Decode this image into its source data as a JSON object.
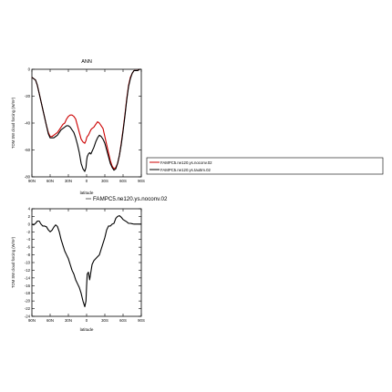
{
  "chart_data": [
    {
      "type": "line",
      "title": "ANN",
      "xlabel": "latitude",
      "ylabel": "TOM SW cloud forcing (W/m²)",
      "x_ticks": [
        "90N",
        "60N",
        "30N",
        "0",
        "30S",
        "60S",
        "90S"
      ],
      "x_tick_values": [
        90,
        60,
        30,
        0,
        -30,
        -60,
        -90
      ],
      "xlim": [
        90,
        -90
      ],
      "y_ticks": [
        "0",
        "-20",
        "-40",
        "-60",
        "-80"
      ],
      "y_tick_values": [
        0,
        -20,
        -40,
        -60,
        -80
      ],
      "ylim": [
        -80,
        0
      ],
      "legend_position": "right",
      "grid": false,
      "series": [
        {
          "name": "FAMPC5.ne120.ys.noconv.02",
          "color": "#cc0000",
          "x": [
            90,
            87,
            84,
            81,
            78,
            75,
            72,
            69,
            66,
            63,
            60,
            57,
            54,
            51,
            48,
            45,
            42,
            39,
            36,
            33,
            30,
            27,
            24,
            21,
            18,
            15,
            12,
            9,
            6,
            3,
            1,
            0,
            -1,
            -3,
            -5,
            -7,
            -9,
            -12,
            -15,
            -18,
            -21,
            -24,
            -27,
            -30,
            -33,
            -36,
            -39,
            -42,
            -45,
            -48,
            -51,
            -54,
            -57,
            -60,
            -63,
            -66,
            -69,
            -72,
            -75,
            -78,
            -81,
            -84,
            -87,
            -90
          ],
          "y": [
            -6,
            -7,
            -8,
            -12,
            -18,
            -24,
            -30,
            -36,
            -42,
            -47,
            -50,
            -50,
            -49,
            -48,
            -47,
            -45,
            -43,
            -41,
            -40,
            -37,
            -35,
            -34,
            -34,
            -35,
            -37,
            -42,
            -47,
            -52,
            -54,
            -55,
            -53,
            -51,
            -50,
            -49,
            -47,
            -45,
            -44,
            -43,
            -41,
            -39,
            -40,
            -42,
            -44,
            -50,
            -56,
            -62,
            -68,
            -72,
            -74,
            -73,
            -70,
            -64,
            -55,
            -45,
            -34,
            -22,
            -12,
            -6,
            -3,
            -1,
            -1,
            -1,
            0,
            0
          ]
        },
        {
          "name": "FAMPC5.ne120.ys.tau5m.02",
          "color": "#000000",
          "x": [
            90,
            87,
            84,
            81,
            78,
            75,
            72,
            69,
            66,
            63,
            60,
            57,
            54,
            51,
            48,
            45,
            42,
            39,
            36,
            33,
            30,
            27,
            24,
            21,
            18,
            15,
            12,
            9,
            6,
            3,
            1,
            0,
            -1,
            -3,
            -5,
            -7,
            -9,
            -12,
            -15,
            -18,
            -21,
            -24,
            -27,
            -30,
            -33,
            -36,
            -39,
            -42,
            -45,
            -48,
            -51,
            -54,
            -57,
            -60,
            -63,
            -66,
            -69,
            -72,
            -75,
            -78,
            -81,
            -84,
            -87,
            -90
          ],
          "y": [
            -6,
            -7,
            -8,
            -12,
            -18,
            -24,
            -30,
            -36,
            -42,
            -48,
            -51,
            -51,
            -51,
            -50,
            -49,
            -47,
            -45,
            -44,
            -43,
            -42,
            -42,
            -43,
            -45,
            -47,
            -51,
            -56,
            -62,
            -70,
            -74,
            -76,
            -73,
            -68,
            -65,
            -63,
            -62,
            -63,
            -61,
            -58,
            -54,
            -51,
            -49,
            -50,
            -52,
            -55,
            -60,
            -65,
            -70,
            -73,
            -75,
            -74,
            -70,
            -64,
            -56,
            -46,
            -35,
            -23,
            -13,
            -7,
            -3,
            -1,
            -1,
            -1,
            0,
            0
          ]
        }
      ]
    },
    {
      "type": "line",
      "title": "",
      "xlabel": "latitude",
      "ylabel": "TOM SW cloud forcing (W/m²)",
      "x_ticks": [
        "90N",
        "60N",
        "30N",
        "0",
        "30S",
        "60S",
        "90S"
      ],
      "x_tick_values": [
        90,
        60,
        30,
        0,
        -30,
        -60,
        -90
      ],
      "xlim": [
        90,
        -90
      ],
      "y_ticks": [
        "4",
        "2",
        "0",
        "-2",
        "-4",
        "-6",
        "-8",
        "-10",
        "-12",
        "-14",
        "-16",
        "-18",
        "-20",
        "-22",
        "-24"
      ],
      "y_tick_values": [
        4,
        2,
        0,
        -2,
        -4,
        -6,
        -8,
        -10,
        -12,
        -14,
        -16,
        -18,
        -20,
        -22,
        -24
      ],
      "ylim": [
        -24,
        4
      ],
      "legend_position": "top-right",
      "grid": false,
      "series": [
        {
          "name": "FAMPC5.ne120.ys.noconv.02",
          "color": "#000000",
          "x": [
            90,
            87,
            84,
            81,
            78,
            75,
            72,
            69,
            66,
            63,
            60,
            57,
            54,
            51,
            48,
            45,
            42,
            39,
            36,
            33,
            30,
            27,
            24,
            21,
            18,
            15,
            12,
            9,
            6,
            3,
            1,
            0,
            -1,
            -3,
            -5,
            -7,
            -9,
            -12,
            -15,
            -18,
            -21,
            -24,
            -27,
            -30,
            -33,
            -36,
            -39,
            -42,
            -45,
            -48,
            -51,
            -54,
            -57,
            -60,
            -63,
            -66,
            -69,
            -72,
            -75,
            -78,
            -81,
            -84,
            -87,
            -90
          ],
          "y": [
            0,
            -0.2,
            0.2,
            0.8,
            0.8,
            0,
            -0.5,
            -0.5,
            -0.7,
            -1.5,
            -2,
            -1.6,
            -0.8,
            -0.2,
            -0.6,
            -2,
            -4,
            -5.5,
            -7,
            -8,
            -9,
            -10.5,
            -12,
            -13,
            -14.5,
            -15.5,
            -16.5,
            -18,
            -20,
            -21.5,
            -20,
            -16,
            -13,
            -12.5,
            -14.5,
            -12.5,
            -10.5,
            -9.5,
            -9,
            -8.5,
            -8,
            -6.5,
            -5,
            -3.5,
            -1.5,
            -0.5,
            -0.5,
            0,
            0.2,
            1.5,
            2,
            2.2,
            1.8,
            1.2,
            0.9,
            0.6,
            0.2,
            0.2,
            0.1,
            0,
            0,
            0,
            0,
            0
          ]
        }
      ]
    }
  ]
}
